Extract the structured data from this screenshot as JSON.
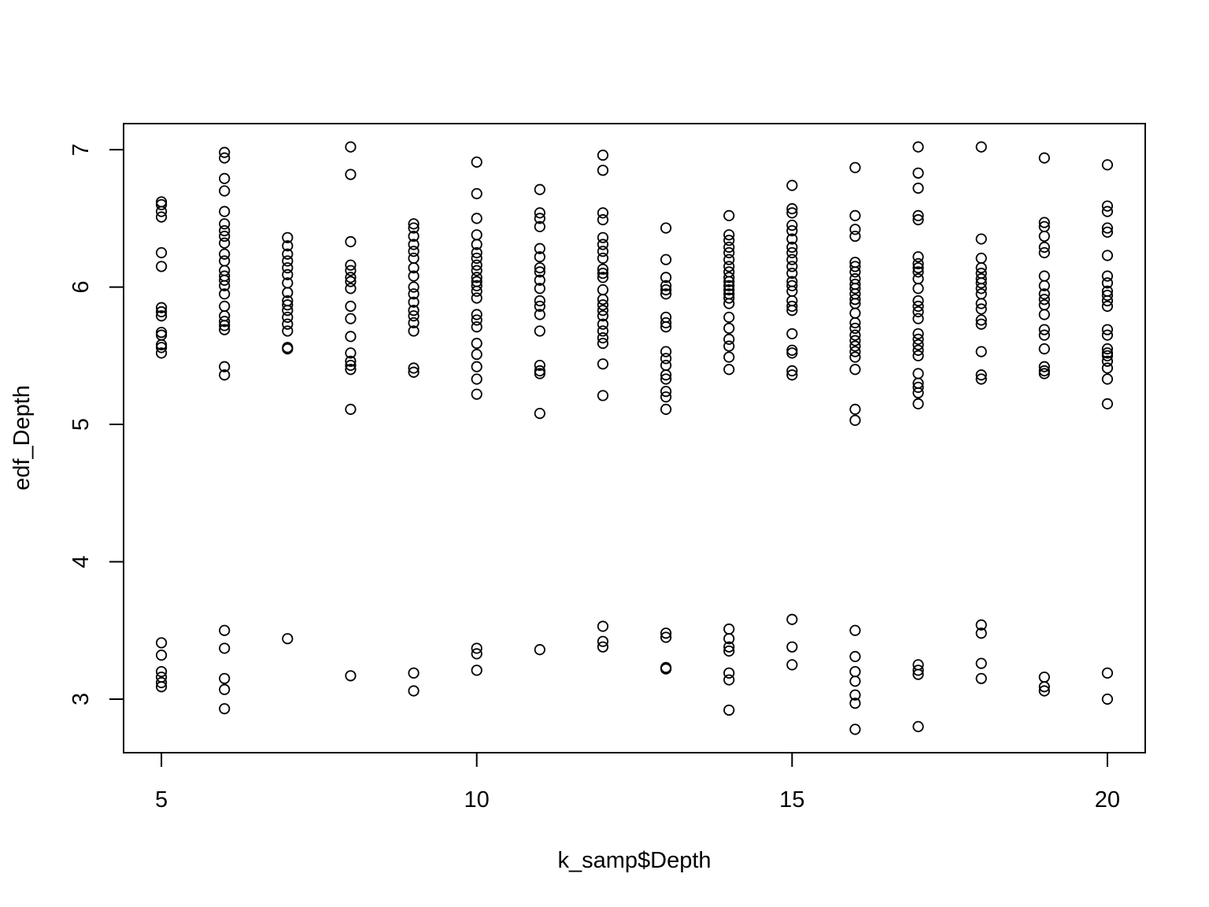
{
  "chart_data": {
    "type": "scatter",
    "title": "",
    "xlabel": "k_samp$Depth",
    "ylabel": "edf_Depth",
    "xlim": [
      4.4,
      20.6
    ],
    "ylim": [
      2.61,
      7.19
    ],
    "x_ticks": [
      5,
      10,
      15,
      20
    ],
    "y_ticks": [
      3,
      4,
      5,
      6,
      7
    ],
    "x_tick_labels": [
      "5",
      "10",
      "15",
      "20"
    ],
    "y_tick_labels": [
      "3",
      "4",
      "5",
      "6",
      "7"
    ],
    "grid": false,
    "legend": "none",
    "marker": "open-circle",
    "marker_color": "#000000",
    "points": [
      [
        5,
        6.62
      ],
      [
        5,
        6.6
      ],
      [
        5,
        6.55
      ],
      [
        5,
        6.51
      ],
      [
        5,
        6.25
      ],
      [
        5,
        6.15
      ],
      [
        5,
        5.85
      ],
      [
        5,
        5.82
      ],
      [
        5,
        5.79
      ],
      [
        5,
        5.67
      ],
      [
        5,
        5.65
      ],
      [
        5,
        5.58
      ],
      [
        5,
        5.56
      ],
      [
        5,
        5.52
      ],
      [
        5,
        3.41
      ],
      [
        5,
        3.32
      ],
      [
        5,
        3.2
      ],
      [
        5,
        3.16
      ],
      [
        5,
        3.12
      ],
      [
        5,
        3.09
      ],
      [
        6,
        6.98
      ],
      [
        6,
        6.94
      ],
      [
        6,
        6.79
      ],
      [
        6,
        6.7
      ],
      [
        6,
        6.55
      ],
      [
        6,
        6.46
      ],
      [
        6,
        6.41
      ],
      [
        6,
        6.37
      ],
      [
        6,
        6.32
      ],
      [
        6,
        6.24
      ],
      [
        6,
        6.19
      ],
      [
        6,
        6.12
      ],
      [
        6,
        6.08
      ],
      [
        6,
        6.05
      ],
      [
        6,
        6.01
      ],
      [
        6,
        5.95
      ],
      [
        6,
        5.86
      ],
      [
        6,
        5.79
      ],
      [
        6,
        5.75
      ],
      [
        6,
        5.72
      ],
      [
        6,
        5.69
      ],
      [
        6,
        5.42
      ],
      [
        6,
        5.36
      ],
      [
        6,
        3.5
      ],
      [
        6,
        3.37
      ],
      [
        6,
        3.15
      ],
      [
        6,
        3.07
      ],
      [
        6,
        2.93
      ],
      [
        7,
        6.36
      ],
      [
        7,
        6.3
      ],
      [
        7,
        6.24
      ],
      [
        7,
        6.19
      ],
      [
        7,
        6.14
      ],
      [
        7,
        6.09
      ],
      [
        7,
        6.03
      ],
      [
        7,
        5.96
      ],
      [
        7,
        5.9
      ],
      [
        7,
        5.87
      ],
      [
        7,
        5.83
      ],
      [
        7,
        5.78
      ],
      [
        7,
        5.73
      ],
      [
        7,
        5.68
      ],
      [
        7,
        5.56
      ],
      [
        7,
        5.55
      ],
      [
        7,
        3.44
      ],
      [
        8,
        7.02
      ],
      [
        8,
        6.82
      ],
      [
        8,
        6.33
      ],
      [
        8,
        6.16
      ],
      [
        8,
        6.12
      ],
      [
        8,
        6.07
      ],
      [
        8,
        6.04
      ],
      [
        8,
        5.99
      ],
      [
        8,
        5.86
      ],
      [
        8,
        5.77
      ],
      [
        8,
        5.64
      ],
      [
        8,
        5.52
      ],
      [
        8,
        5.46
      ],
      [
        8,
        5.43
      ],
      [
        8,
        5.4
      ],
      [
        8,
        5.11
      ],
      [
        8,
        3.17
      ],
      [
        9,
        6.46
      ],
      [
        9,
        6.43
      ],
      [
        9,
        6.37
      ],
      [
        9,
        6.31
      ],
      [
        9,
        6.26
      ],
      [
        9,
        6.21
      ],
      [
        9,
        6.14
      ],
      [
        9,
        6.08
      ],
      [
        9,
        6.0
      ],
      [
        9,
        5.95
      ],
      [
        9,
        5.89
      ],
      [
        9,
        5.83
      ],
      [
        9,
        5.79
      ],
      [
        9,
        5.74
      ],
      [
        9,
        5.68
      ],
      [
        9,
        5.41
      ],
      [
        9,
        5.38
      ],
      [
        9,
        3.19
      ],
      [
        9,
        3.06
      ],
      [
        10,
        6.91
      ],
      [
        10,
        6.68
      ],
      [
        10,
        6.5
      ],
      [
        10,
        6.38
      ],
      [
        10,
        6.31
      ],
      [
        10,
        6.25
      ],
      [
        10,
        6.21
      ],
      [
        10,
        6.16
      ],
      [
        10,
        6.12
      ],
      [
        10,
        6.07
      ],
      [
        10,
        6.04
      ],
      [
        10,
        6.01
      ],
      [
        10,
        5.97
      ],
      [
        10,
        5.92
      ],
      [
        10,
        5.8
      ],
      [
        10,
        5.76
      ],
      [
        10,
        5.71
      ],
      [
        10,
        5.59
      ],
      [
        10,
        5.51
      ],
      [
        10,
        5.42
      ],
      [
        10,
        5.33
      ],
      [
        10,
        5.22
      ],
      [
        10,
        3.37
      ],
      [
        10,
        3.33
      ],
      [
        10,
        3.21
      ],
      [
        11,
        6.71
      ],
      [
        11,
        6.54
      ],
      [
        11,
        6.5
      ],
      [
        11,
        6.44
      ],
      [
        11,
        6.28
      ],
      [
        11,
        6.22
      ],
      [
        11,
        6.14
      ],
      [
        11,
        6.11
      ],
      [
        11,
        6.05
      ],
      [
        11,
        5.99
      ],
      [
        11,
        5.9
      ],
      [
        11,
        5.86
      ],
      [
        11,
        5.8
      ],
      [
        11,
        5.68
      ],
      [
        11,
        5.43
      ],
      [
        11,
        5.39
      ],
      [
        11,
        5.37
      ],
      [
        11,
        5.08
      ],
      [
        11,
        3.36
      ],
      [
        12,
        6.96
      ],
      [
        12,
        6.85
      ],
      [
        12,
        6.54
      ],
      [
        12,
        6.49
      ],
      [
        12,
        6.36
      ],
      [
        12,
        6.31
      ],
      [
        12,
        6.26
      ],
      [
        12,
        6.21
      ],
      [
        12,
        6.13
      ],
      [
        12,
        6.1
      ],
      [
        12,
        6.07
      ],
      [
        12,
        5.98
      ],
      [
        12,
        5.91
      ],
      [
        12,
        5.87
      ],
      [
        12,
        5.83
      ],
      [
        12,
        5.79
      ],
      [
        12,
        5.73
      ],
      [
        12,
        5.68
      ],
      [
        12,
        5.63
      ],
      [
        12,
        5.59
      ],
      [
        12,
        5.44
      ],
      [
        12,
        5.21
      ],
      [
        12,
        3.53
      ],
      [
        12,
        3.42
      ],
      [
        12,
        3.38
      ],
      [
        13,
        6.43
      ],
      [
        13,
        6.2
      ],
      [
        13,
        6.07
      ],
      [
        13,
        6.01
      ],
      [
        13,
        5.98
      ],
      [
        13,
        5.95
      ],
      [
        13,
        5.78
      ],
      [
        13,
        5.74
      ],
      [
        13,
        5.71
      ],
      [
        13,
        5.53
      ],
      [
        13,
        5.48
      ],
      [
        13,
        5.43
      ],
      [
        13,
        5.36
      ],
      [
        13,
        5.33
      ],
      [
        13,
        5.24
      ],
      [
        13,
        5.2
      ],
      [
        13,
        5.11
      ],
      [
        13,
        3.48
      ],
      [
        13,
        3.45
      ],
      [
        13,
        3.23
      ],
      [
        13,
        3.22
      ],
      [
        14,
        6.52
      ],
      [
        14,
        6.38
      ],
      [
        14,
        6.34
      ],
      [
        14,
        6.29
      ],
      [
        14,
        6.25
      ],
      [
        14,
        6.2
      ],
      [
        14,
        6.15
      ],
      [
        14,
        6.11
      ],
      [
        14,
        6.07
      ],
      [
        14,
        6.04
      ],
      [
        14,
        6.01
      ],
      [
        14,
        5.98
      ],
      [
        14,
        5.95
      ],
      [
        14,
        5.92
      ],
      [
        14,
        5.88
      ],
      [
        14,
        5.78
      ],
      [
        14,
        5.7
      ],
      [
        14,
        5.62
      ],
      [
        14,
        5.57
      ],
      [
        14,
        5.49
      ],
      [
        14,
        5.4
      ],
      [
        14,
        3.51
      ],
      [
        14,
        3.44
      ],
      [
        14,
        3.38
      ],
      [
        14,
        3.35
      ],
      [
        14,
        3.19
      ],
      [
        14,
        3.14
      ],
      [
        14,
        2.92
      ],
      [
        15,
        6.74
      ],
      [
        15,
        6.57
      ],
      [
        15,
        6.54
      ],
      [
        15,
        6.45
      ],
      [
        15,
        6.41
      ],
      [
        15,
        6.35
      ],
      [
        15,
        6.29
      ],
      [
        15,
        6.25
      ],
      [
        15,
        6.2
      ],
      [
        15,
        6.15
      ],
      [
        15,
        6.1
      ],
      [
        15,
        6.04
      ],
      [
        15,
        6.01
      ],
      [
        15,
        5.97
      ],
      [
        15,
        5.9
      ],
      [
        15,
        5.86
      ],
      [
        15,
        5.83
      ],
      [
        15,
        5.66
      ],
      [
        15,
        5.54
      ],
      [
        15,
        5.52
      ],
      [
        15,
        5.39
      ],
      [
        15,
        5.36
      ],
      [
        15,
        3.58
      ],
      [
        15,
        3.38
      ],
      [
        15,
        3.25
      ],
      [
        16,
        6.87
      ],
      [
        16,
        6.52
      ],
      [
        16,
        6.42
      ],
      [
        16,
        6.37
      ],
      [
        16,
        6.18
      ],
      [
        16,
        6.15
      ],
      [
        16,
        6.11
      ],
      [
        16,
        6.06
      ],
      [
        16,
        6.02
      ],
      [
        16,
        5.99
      ],
      [
        16,
        5.95
      ],
      [
        16,
        5.91
      ],
      [
        16,
        5.88
      ],
      [
        16,
        5.81
      ],
      [
        16,
        5.74
      ],
      [
        16,
        5.7
      ],
      [
        16,
        5.65
      ],
      [
        16,
        5.61
      ],
      [
        16,
        5.57
      ],
      [
        16,
        5.53
      ],
      [
        16,
        5.49
      ],
      [
        16,
        5.4
      ],
      [
        16,
        5.11
      ],
      [
        16,
        5.03
      ],
      [
        16,
        3.5
      ],
      [
        16,
        3.31
      ],
      [
        16,
        3.2
      ],
      [
        16,
        3.13
      ],
      [
        16,
        3.03
      ],
      [
        16,
        2.97
      ],
      [
        16,
        2.78
      ],
      [
        17,
        7.02
      ],
      [
        17,
        6.83
      ],
      [
        17,
        6.72
      ],
      [
        17,
        6.52
      ],
      [
        17,
        6.49
      ],
      [
        17,
        6.22
      ],
      [
        17,
        6.17
      ],
      [
        17,
        6.14
      ],
      [
        17,
        6.11
      ],
      [
        17,
        6.06
      ],
      [
        17,
        5.99
      ],
      [
        17,
        5.9
      ],
      [
        17,
        5.86
      ],
      [
        17,
        5.82
      ],
      [
        17,
        5.77
      ],
      [
        17,
        5.66
      ],
      [
        17,
        5.62
      ],
      [
        17,
        5.58
      ],
      [
        17,
        5.54
      ],
      [
        17,
        5.5
      ],
      [
        17,
        5.37
      ],
      [
        17,
        5.3
      ],
      [
        17,
        5.27
      ],
      [
        17,
        5.23
      ],
      [
        17,
        5.15
      ],
      [
        17,
        3.25
      ],
      [
        17,
        3.21
      ],
      [
        17,
        3.18
      ],
      [
        17,
        2.8
      ],
      [
        18,
        7.02
      ],
      [
        18,
        6.35
      ],
      [
        18,
        6.21
      ],
      [
        18,
        6.14
      ],
      [
        18,
        6.1
      ],
      [
        18,
        6.06
      ],
      [
        18,
        6.03
      ],
      [
        18,
        5.99
      ],
      [
        18,
        5.95
      ],
      [
        18,
        5.88
      ],
      [
        18,
        5.84
      ],
      [
        18,
        5.76
      ],
      [
        18,
        5.73
      ],
      [
        18,
        5.53
      ],
      [
        18,
        5.36
      ],
      [
        18,
        5.33
      ],
      [
        18,
        3.54
      ],
      [
        18,
        3.48
      ],
      [
        18,
        3.26
      ],
      [
        18,
        3.15
      ],
      [
        19,
        6.94
      ],
      [
        19,
        6.47
      ],
      [
        19,
        6.44
      ],
      [
        19,
        6.37
      ],
      [
        19,
        6.29
      ],
      [
        19,
        6.25
      ],
      [
        19,
        6.08
      ],
      [
        19,
        6.01
      ],
      [
        19,
        5.95
      ],
      [
        19,
        5.91
      ],
      [
        19,
        5.87
      ],
      [
        19,
        5.8
      ],
      [
        19,
        5.69
      ],
      [
        19,
        5.65
      ],
      [
        19,
        5.55
      ],
      [
        19,
        5.42
      ],
      [
        19,
        5.39
      ],
      [
        19,
        5.37
      ],
      [
        19,
        3.16
      ],
      [
        19,
        3.09
      ],
      [
        19,
        3.06
      ],
      [
        20,
        6.89
      ],
      [
        20,
        6.59
      ],
      [
        20,
        6.55
      ],
      [
        20,
        6.43
      ],
      [
        20,
        6.4
      ],
      [
        20,
        6.23
      ],
      [
        20,
        6.08
      ],
      [
        20,
        6.03
      ],
      [
        20,
        5.97
      ],
      [
        20,
        5.94
      ],
      [
        20,
        5.9
      ],
      [
        20,
        5.86
      ],
      [
        20,
        5.69
      ],
      [
        20,
        5.65
      ],
      [
        20,
        5.55
      ],
      [
        20,
        5.52
      ],
      [
        20,
        5.5
      ],
      [
        20,
        5.46
      ],
      [
        20,
        5.41
      ],
      [
        20,
        5.33
      ],
      [
        20,
        5.15
      ],
      [
        20,
        3.19
      ],
      [
        20,
        3.0
      ]
    ]
  }
}
